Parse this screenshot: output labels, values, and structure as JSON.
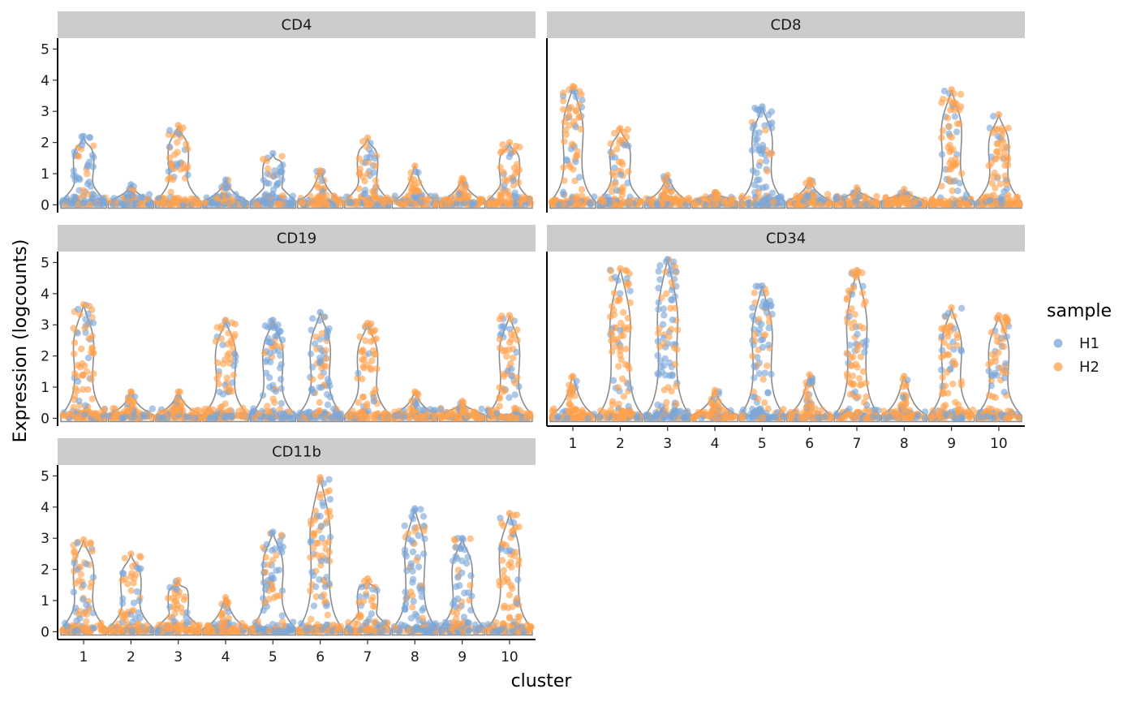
{
  "chart_data": {
    "type": "violin-jitter",
    "xlabel": "cluster",
    "ylabel": "Expression (logcounts)",
    "categories": [
      "1",
      "2",
      "3",
      "4",
      "5",
      "6",
      "7",
      "8",
      "9",
      "10"
    ],
    "yticks": [
      0,
      1,
      2,
      3,
      4,
      5
    ],
    "ylim": [
      -0.25,
      5.35
    ],
    "grid": false,
    "legend": {
      "title": "sample",
      "placement": "right",
      "entries": [
        {
          "name": "H1",
          "color": "#7aa6d8"
        },
        {
          "name": "H2",
          "color": "#ffa14e"
        }
      ]
    },
    "colors": {
      "violin": "#8c8c8c",
      "strip": "#cccccc"
    },
    "panels": [
      {
        "title": "CD4",
        "max": [
          2.2,
          0.65,
          2.55,
          0.8,
          1.65,
          1.1,
          2.15,
          1.25,
          0.85,
          2.0
        ],
        "dominant": [
          "H1",
          "H1",
          "H2",
          "H1",
          "H1",
          "H2",
          "H2",
          "H2",
          "H2",
          "H2"
        ]
      },
      {
        "title": "CD8",
        "max": [
          3.8,
          2.45,
          0.95,
          0.4,
          3.15,
          0.8,
          0.55,
          0.5,
          3.7,
          2.9
        ],
        "dominant": [
          "H2",
          "H2",
          "H2",
          "H2",
          "H1",
          "H2",
          "H2",
          "H2",
          "H2",
          "H2"
        ]
      },
      {
        "title": "CD19",
        "max": [
          3.65,
          0.85,
          0.85,
          3.15,
          3.15,
          3.4,
          3.05,
          0.85,
          0.55,
          3.3
        ],
        "dominant": [
          "H2",
          "H2",
          "H2",
          "H2",
          "H1",
          "H1",
          "H2",
          "H2",
          "H2",
          "H2"
        ]
      },
      {
        "title": "CD34",
        "max": [
          1.35,
          4.8,
          5.1,
          0.9,
          4.25,
          1.4,
          4.75,
          1.35,
          3.55,
          3.3
        ],
        "dominant": [
          "H2",
          "H2",
          "H1",
          "H2",
          "H1",
          "H2",
          "H2",
          "H2",
          "H2",
          "H2"
        ]
      },
      {
        "title": "CD11b",
        "max": [
          2.95,
          2.5,
          1.65,
          1.1,
          3.2,
          4.95,
          1.7,
          3.95,
          3.0,
          3.8
        ],
        "dominant": [
          "H2",
          "H2",
          "H2",
          "H2",
          "H1",
          "H2",
          "H2",
          "H1",
          "H1",
          "H2"
        ]
      }
    ]
  }
}
